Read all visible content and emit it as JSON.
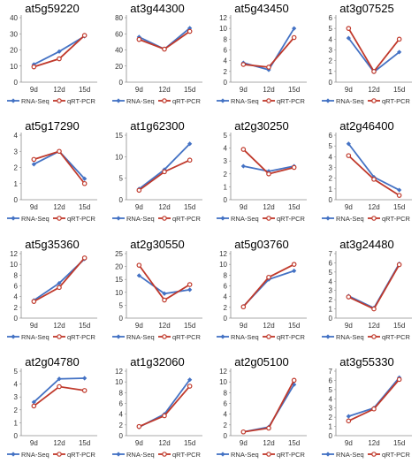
{
  "colors": {
    "rna": "#4472c4",
    "qrt": "#c0392b",
    "axis": "#8c8c8c"
  },
  "legend": {
    "rna": "RNA-Seq",
    "qrt": "qRT-PCR"
  },
  "chart_data": [
    {
      "type": "line",
      "title": "at5g59220",
      "categories": [
        "9d",
        "12d",
        "15d"
      ],
      "ylim": [
        0,
        40
      ],
      "yticks": [
        0,
        10,
        20,
        30,
        40
      ],
      "series": [
        {
          "name": "RNA-Seq",
          "values": [
            11,
            19,
            28.5
          ]
        },
        {
          "name": "qRT-PCR",
          "values": [
            9.5,
            14.5,
            29
          ]
        }
      ],
      "legend_position": "bottom"
    },
    {
      "type": "line",
      "title": "at3g44300",
      "categories": [
        "9d",
        "12d",
        "15d"
      ],
      "ylim": [
        0,
        80
      ],
      "yticks": [
        0,
        20,
        40,
        60,
        80
      ],
      "series": [
        {
          "name": "RNA-Seq",
          "values": [
            56,
            41,
            67
          ]
        },
        {
          "name": "qRT-PCR",
          "values": [
            53,
            41,
            63
          ]
        }
      ],
      "legend_position": "bottom"
    },
    {
      "type": "line",
      "title": "at5g43450",
      "categories": [
        "9d",
        "12d",
        "15d"
      ],
      "ylim": [
        0,
        12
      ],
      "yticks": [
        0,
        2,
        4,
        6,
        8,
        10,
        12
      ],
      "series": [
        {
          "name": "RNA-Seq",
          "values": [
            3.6,
            2.3,
            10
          ]
        },
        {
          "name": "qRT-PCR",
          "values": [
            3.3,
            2.8,
            8.3
          ]
        }
      ],
      "legend_position": "bottom"
    },
    {
      "type": "line",
      "title": "at3g07525",
      "categories": [
        "9d",
        "12d",
        "15d"
      ],
      "ylim": [
        0,
        6
      ],
      "yticks": [
        0,
        1,
        2,
        3,
        4,
        5,
        6
      ],
      "series": [
        {
          "name": "RNA-Seq",
          "values": [
            4.1,
            0.95,
            2.8
          ]
        },
        {
          "name": "qRT-PCR",
          "values": [
            5.0,
            1.0,
            4.0
          ]
        }
      ],
      "legend_position": "bottom"
    },
    {
      "type": "line",
      "title": "at5g17290",
      "categories": [
        "9d",
        "12d",
        "15d"
      ],
      "ylim": [
        0,
        4
      ],
      "yticks": [
        0,
        1,
        2,
        3,
        4
      ],
      "series": [
        {
          "name": "RNA-Seq",
          "values": [
            2.2,
            3.0,
            1.3
          ]
        },
        {
          "name": "qRT-PCR",
          "values": [
            2.5,
            3.0,
            1.0
          ]
        }
      ],
      "legend_position": "bottom"
    },
    {
      "type": "line",
      "title": "at1g62300",
      "categories": [
        "9d",
        "12d",
        "15d"
      ],
      "ylim": [
        0,
        15
      ],
      "yticks": [
        0,
        5,
        10,
        15
      ],
      "series": [
        {
          "name": "RNA-Seq",
          "values": [
            2.5,
            7,
            13
          ]
        },
        {
          "name": "qRT-PCR",
          "values": [
            2.2,
            6.5,
            9.2
          ]
        }
      ],
      "legend_position": "bottom"
    },
    {
      "type": "line",
      "title": "at2g30250",
      "categories": [
        "9d",
        "12d",
        "15d"
      ],
      "ylim": [
        0,
        5
      ],
      "yticks": [
        0,
        1,
        2,
        3,
        4,
        5
      ],
      "series": [
        {
          "name": "RNA-Seq",
          "values": [
            2.6,
            2.2,
            2.6
          ]
        },
        {
          "name": "qRT-PCR",
          "values": [
            3.9,
            2.0,
            2.5
          ]
        }
      ],
      "legend_position": "bottom"
    },
    {
      "type": "line",
      "title": "at2g46400",
      "categories": [
        "9d",
        "12d",
        "15d"
      ],
      "ylim": [
        0,
        6
      ],
      "yticks": [
        0,
        1,
        2,
        3,
        4,
        5,
        6
      ],
      "series": [
        {
          "name": "RNA-Seq",
          "values": [
            5.2,
            2.1,
            0.9
          ]
        },
        {
          "name": "qRT-PCR",
          "values": [
            4.1,
            1.9,
            0.4
          ]
        }
      ],
      "legend_position": "bottom"
    },
    {
      "type": "line",
      "title": "at5g35360",
      "categories": [
        "9d",
        "12d",
        "15d"
      ],
      "ylim": [
        0,
        12
      ],
      "yticks": [
        0,
        2,
        4,
        6,
        8,
        10,
        12
      ],
      "series": [
        {
          "name": "RNA-Seq",
          "values": [
            3.3,
            6.5,
            11
          ]
        },
        {
          "name": "qRT-PCR",
          "values": [
            3.1,
            5.7,
            11.2
          ]
        }
      ],
      "legend_position": "bottom"
    },
    {
      "type": "line",
      "title": "at2g30550",
      "categories": [
        "9d",
        "12d",
        "15d"
      ],
      "ylim": [
        0,
        25
      ],
      "yticks": [
        0,
        5,
        10,
        15,
        20,
        25
      ],
      "series": [
        {
          "name": "RNA-Seq",
          "values": [
            16.5,
            9.5,
            11
          ]
        },
        {
          "name": "qRT-PCR",
          "values": [
            20.5,
            7,
            13
          ]
        }
      ],
      "legend_position": "bottom"
    },
    {
      "type": "line",
      "title": "at5g03760",
      "categories": [
        "9d",
        "12d",
        "15d"
      ],
      "ylim": [
        0,
        12
      ],
      "yticks": [
        0,
        2,
        4,
        6,
        8,
        10,
        12
      ],
      "series": [
        {
          "name": "RNA-Seq",
          "values": [
            2.2,
            7.2,
            8.8
          ]
        },
        {
          "name": "qRT-PCR",
          "values": [
            2.1,
            7.6,
            10
          ]
        }
      ],
      "legend_position": "bottom"
    },
    {
      "type": "line",
      "title": "at3g24480",
      "categories": [
        "9d",
        "12d",
        "15d"
      ],
      "ylim": [
        0,
        7
      ],
      "yticks": [
        0,
        1,
        2,
        3,
        4,
        5,
        6,
        7
      ],
      "series": [
        {
          "name": "RNA-Seq",
          "values": [
            2.4,
            1.1,
            5.9
          ]
        },
        {
          "name": "qRT-PCR",
          "values": [
            2.3,
            1.0,
            5.8
          ]
        }
      ],
      "legend_position": "bottom"
    },
    {
      "type": "line",
      "title": "at2g04780",
      "categories": [
        "9d",
        "12d",
        "15d"
      ],
      "ylim": [
        0,
        5
      ],
      "yticks": [
        0,
        1,
        2,
        3,
        4,
        5
      ],
      "series": [
        {
          "name": "RNA-Seq",
          "values": [
            2.6,
            4.4,
            4.45
          ]
        },
        {
          "name": "qRT-PCR",
          "values": [
            2.3,
            3.8,
            3.5
          ]
        }
      ],
      "legend_position": "bottom"
    },
    {
      "type": "line",
      "title": "at1g32060",
      "categories": [
        "9d",
        "12d",
        "15d"
      ],
      "ylim": [
        0,
        12
      ],
      "yticks": [
        0,
        2,
        4,
        6,
        8,
        10,
        12
      ],
      "series": [
        {
          "name": "RNA-Seq",
          "values": [
            1.6,
            4.0,
            10.4
          ]
        },
        {
          "name": "qRT-PCR",
          "values": [
            1.7,
            3.7,
            9.2
          ]
        }
      ],
      "legend_position": "bottom"
    },
    {
      "type": "line",
      "title": "at2g05100",
      "categories": [
        "9d",
        "12d",
        "15d"
      ],
      "ylim": [
        0,
        12
      ],
      "yticks": [
        0,
        2,
        4,
        6,
        8,
        10,
        12
      ],
      "series": [
        {
          "name": "RNA-Seq",
          "values": [
            0.7,
            1.6,
            9.5
          ]
        },
        {
          "name": "qRT-PCR",
          "values": [
            0.7,
            1.4,
            10.3
          ]
        }
      ],
      "legend_position": "bottom"
    },
    {
      "type": "line",
      "title": "at3g55330",
      "categories": [
        "9d",
        "12d",
        "15d"
      ],
      "ylim": [
        0,
        7
      ],
      "yticks": [
        0,
        1,
        2,
        3,
        4,
        5,
        6,
        7
      ],
      "series": [
        {
          "name": "RNA-Seq",
          "values": [
            2.1,
            3.0,
            6.3
          ]
        },
        {
          "name": "qRT-PCR",
          "values": [
            1.6,
            2.9,
            6.1
          ]
        }
      ],
      "legend_position": "bottom"
    }
  ]
}
